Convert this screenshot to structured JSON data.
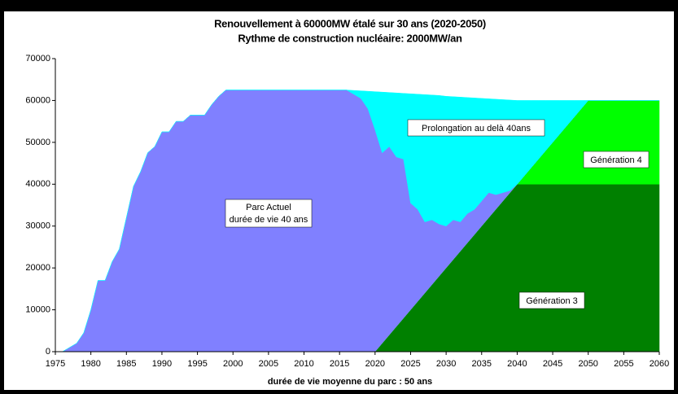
{
  "chart_data": {
    "type": "area",
    "stacked": true,
    "title": "Renouvellement à 60000MW étalé sur 30 ans (2020-2050)",
    "subtitle": "Rythme de construction nucléaire: 2000MW/an",
    "x_label": "durée de vie moyenne du parc : 50 ans",
    "annotation": "durée de vie 40 ans",
    "x": [
      1975,
      1976,
      1977,
      1978,
      1979,
      1980,
      1981,
      1982,
      1983,
      1984,
      1985,
      1986,
      1987,
      1988,
      1989,
      1990,
      1991,
      1992,
      1993,
      1994,
      1995,
      1996,
      1997,
      1998,
      1999,
      2000,
      2001,
      2002,
      2003,
      2004,
      2005,
      2006,
      2007,
      2008,
      2009,
      2010,
      2011,
      2012,
      2013,
      2014,
      2015,
      2016,
      2017,
      2018,
      2019,
      2020,
      2021,
      2022,
      2023,
      2024,
      2025,
      2026,
      2027,
      2028,
      2029,
      2030,
      2031,
      2032,
      2033,
      2034,
      2035,
      2036,
      2037,
      2038,
      2039,
      2040,
      2041,
      2042,
      2043,
      2044,
      2045,
      2046,
      2047,
      2048,
      2049,
      2050,
      2051,
      2052,
      2053,
      2054,
      2055,
      2056,
      2057,
      2058,
      2059,
      2060
    ],
    "xlim": [
      1975,
      2060
    ],
    "xticks": [
      1975,
      1980,
      1985,
      1990,
      1995,
      2000,
      2005,
      2010,
      2015,
      2020,
      2025,
      2030,
      2035,
      2040,
      2045,
      2050,
      2055,
      2060
    ],
    "ylim": [
      0,
      70000
    ],
    "yticks": [
      0,
      10000,
      20000,
      30000,
      40000,
      50000,
      60000,
      70000
    ],
    "series": [
      {
        "name": "Génération 3",
        "color": "#008000",
        "values": [
          0,
          0,
          0,
          0,
          0,
          0,
          0,
          0,
          0,
          0,
          0,
          0,
          0,
          0,
          0,
          0,
          0,
          0,
          0,
          0,
          0,
          0,
          0,
          0,
          0,
          0,
          0,
          0,
          0,
          0,
          0,
          0,
          0,
          0,
          0,
          0,
          0,
          0,
          0,
          0,
          0,
          0,
          0,
          0,
          0,
          0,
          2000,
          4000,
          6000,
          8000,
          10000,
          12000,
          14000,
          16000,
          18000,
          20000,
          22000,
          24000,
          26000,
          28000,
          30000,
          32000,
          34000,
          36000,
          38000,
          40000,
          40000,
          40000,
          40000,
          40000,
          40000,
          40000,
          40000,
          40000,
          40000,
          40000,
          40000,
          40000,
          40000,
          40000,
          40000,
          40000,
          40000,
          40000,
          40000,
          40000
        ]
      },
      {
        "name": "Génération 4",
        "color": "#00ff00",
        "values": [
          0,
          0,
          0,
          0,
          0,
          0,
          0,
          0,
          0,
          0,
          0,
          0,
          0,
          0,
          0,
          0,
          0,
          0,
          0,
          0,
          0,
          0,
          0,
          0,
          0,
          0,
          0,
          0,
          0,
          0,
          0,
          0,
          0,
          0,
          0,
          0,
          0,
          0,
          0,
          0,
          0,
          0,
          0,
          0,
          0,
          0,
          0,
          0,
          0,
          0,
          0,
          0,
          0,
          0,
          0,
          0,
          0,
          0,
          0,
          0,
          0,
          0,
          0,
          0,
          0,
          0,
          2000,
          4000,
          6000,
          8000,
          10000,
          12000,
          14000,
          16000,
          18000,
          20000,
          20000,
          20000,
          20000,
          20000,
          20000,
          20000,
          20000,
          20000,
          20000,
          20000
        ]
      },
      {
        "name": "Parc Actuel",
        "color": "#8080ff",
        "values": [
          0,
          0,
          1000,
          2000,
          4500,
          10000,
          17000,
          17000,
          21500,
          24500,
          32000,
          39500,
          43000,
          47500,
          49000,
          52500,
          52500,
          55000,
          55000,
          56500,
          56500,
          56500,
          59000,
          61000,
          62500,
          62500,
          62500,
          62500,
          62500,
          62500,
          62500,
          62500,
          62500,
          62500,
          62500,
          62500,
          62500,
          62500,
          62500,
          62500,
          62500,
          62500,
          61500,
          60500,
          58000,
          53000,
          45500,
          45000,
          40500,
          38000,
          25500,
          22000,
          17000,
          15500,
          12500,
          10000,
          9500,
          7000,
          7000,
          6000,
          6000,
          6000,
          3500,
          2000,
          500,
          0,
          0,
          0,
          0,
          0,
          0,
          0,
          0,
          0,
          0,
          0,
          0,
          0,
          0,
          0,
          0,
          0,
          0,
          0,
          0,
          0
        ]
      },
      {
        "name": "Prolongation au delà 40ans",
        "color": "#00ffff",
        "values": [
          0,
          0,
          0,
          0,
          0,
          0,
          0,
          0,
          0,
          0,
          0,
          0,
          0,
          0,
          0,
          0,
          0,
          0,
          0,
          0,
          0,
          0,
          0,
          0,
          0,
          0,
          0,
          0,
          0,
          0,
          0,
          0,
          0,
          0,
          0,
          0,
          0,
          0,
          0,
          0,
          0,
          0,
          900,
          1800,
          4200,
          9100,
          14500,
          12900,
          15300,
          15700,
          26100,
          27500,
          30400,
          29800,
          30700,
          31000,
          29400,
          29800,
          27700,
          26600,
          24500,
          22400,
          22800,
          22200,
          21600,
          20000,
          18000,
          16000,
          14000,
          12000,
          10000,
          8000,
          6000,
          4000,
          2000,
          0,
          0,
          0,
          0,
          0,
          0,
          0,
          0,
          0,
          0,
          0
        ]
      }
    ]
  }
}
